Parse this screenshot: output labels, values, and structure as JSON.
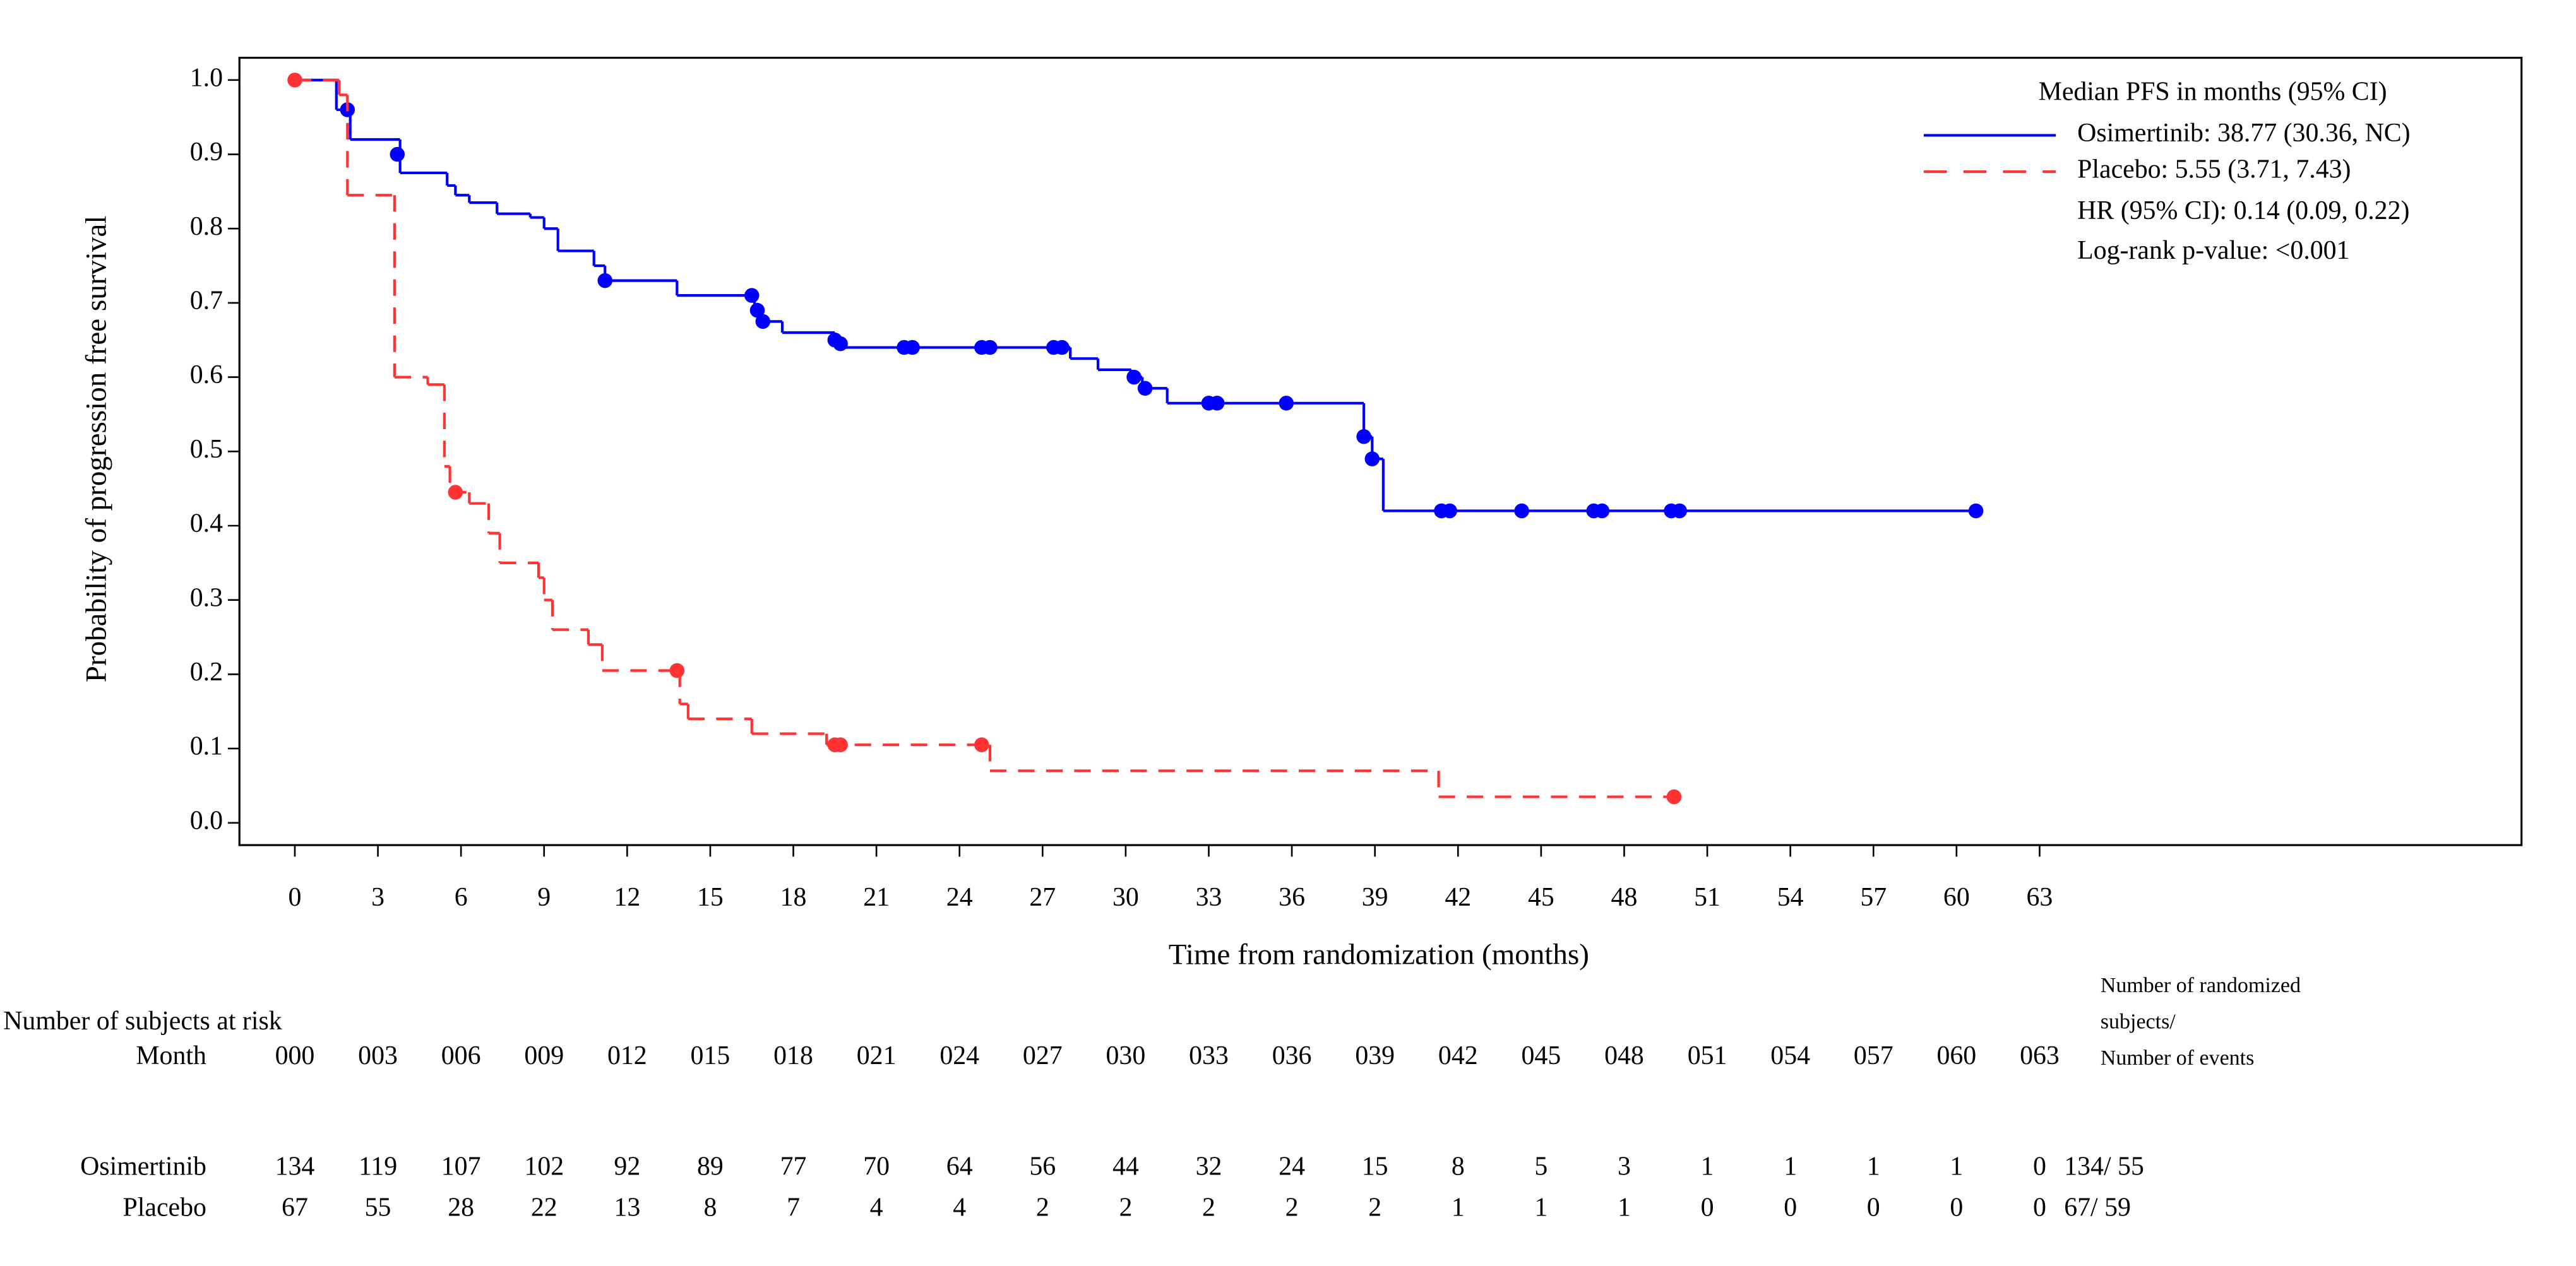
{
  "chart_data": {
    "type": "step",
    "x_label": "Time from randomization (months)",
    "y_label": "Probability of progression free survival",
    "xlim": [
      -2,
      80.4
    ],
    "ylim": [
      -0.03,
      1.03
    ],
    "xticks": [
      0,
      3,
      6,
      9,
      12,
      15,
      18,
      21,
      24,
      27,
      30,
      33,
      36,
      39,
      42,
      45,
      48,
      51,
      54,
      57,
      60,
      63
    ],
    "yticks": [
      {
        "value": 0,
        "label": "0.0"
      },
      0.1,
      0.2,
      0.3,
      0.4,
      0.5,
      0.6,
      0.7,
      0.8,
      0.9,
      {
        "value": 1,
        "label": "1.0"
      }
    ],
    "legend": {
      "title": "Median PFS in months (95% CI)",
      "entries": [
        "Osimertinib: 38.77 (30.36, NC)",
        "Placebo: 5.55 (3.71, 7.43)"
      ],
      "notes": [
        "HR (95% CI): 0.14 (0.09, 0.22)",
        "Log-rank p-value: <0.001"
      ]
    },
    "series": [
      {
        "name": "Osimertinib",
        "color": "#0000ff",
        "dashed": false,
        "x": [
          0,
          1.5,
          2.0,
          3.8,
          5.5,
          5.8,
          6.3,
          7.3,
          8.5,
          9.0,
          9.5,
          10.8,
          11.2,
          13.8,
          16.6,
          16.8,
          17.6,
          19.5,
          19.8,
          28.0,
          29.0,
          30.2,
          30.6,
          31.5,
          38.6,
          38.9,
          39.3,
          60.7
        ],
        "values": [
          1.0,
          0.96,
          0.92,
          0.875,
          0.858,
          0.845,
          0.835,
          0.82,
          0.815,
          0.8,
          0.77,
          0.75,
          0.73,
          0.71,
          0.69,
          0.675,
          0.66,
          0.65,
          0.64,
          0.625,
          0.61,
          0.6,
          0.585,
          0.565,
          0.52,
          0.49,
          0.42,
          0.42
        ],
        "censor_x": [
          1.9,
          3.7,
          11.2,
          16.5,
          16.7,
          16.9,
          19.5,
          19.7,
          22.0,
          22.3,
          24.8,
          25.1,
          27.4,
          27.7,
          30.3,
          30.7,
          33.0,
          33.3,
          35.8,
          38.6,
          38.9,
          41.4,
          41.7,
          44.3,
          46.9,
          47.2,
          49.7,
          50.0,
          60.7
        ],
        "censor_values": [
          0.96,
          0.9,
          0.73,
          0.71,
          0.69,
          0.675,
          0.65,
          0.645,
          0.64,
          0.64,
          0.64,
          0.64,
          0.64,
          0.64,
          0.6,
          0.585,
          0.565,
          0.565,
          0.565,
          0.52,
          0.49,
          0.42,
          0.42,
          0.42,
          0.42,
          0.42,
          0.42,
          0.42,
          0.42
        ]
      },
      {
        "name": "Placebo",
        "color": "#ff3333",
        "dashed": true,
        "x": [
          0,
          1.6,
          1.9,
          3.6,
          4.8,
          5.4,
          5.6,
          6.3,
          7.0,
          7.4,
          8.8,
          9.0,
          9.3,
          10.6,
          11.1,
          13.9,
          14.2,
          16.5,
          19.2,
          25.1,
          41.3,
          49.8
        ],
        "values": [
          1.0,
          0.98,
          0.845,
          0.6,
          0.59,
          0.48,
          0.445,
          0.43,
          0.39,
          0.35,
          0.33,
          0.3,
          0.26,
          0.24,
          0.205,
          0.16,
          0.14,
          0.12,
          0.105,
          0.07,
          0.035,
          0.035
        ],
        "censor_x": [
          0,
          5.8,
          13.8,
          19.5,
          19.7,
          24.8,
          49.8
        ],
        "censor_values": [
          1.0,
          0.445,
          0.205,
          0.105,
          0.105,
          0.105,
          0.035
        ]
      }
    ],
    "risk_table": {
      "title": "Number of subjects at risk",
      "month_label": "Month",
      "months": [
        "000",
        "003",
        "006",
        "009",
        "012",
        "015",
        "018",
        "021",
        "024",
        "027",
        "030",
        "033",
        "036",
        "039",
        "042",
        "045",
        "048",
        "051",
        "054",
        "057",
        "060",
        "063"
      ],
      "total_header": [
        "Number of randomized",
        "subjects/",
        "Number of events"
      ],
      "rows": [
        {
          "name": "Osimertinib",
          "values": [
            134,
            119,
            107,
            102,
            92,
            89,
            77,
            70,
            64,
            56,
            44,
            32,
            24,
            15,
            8,
            5,
            3,
            1,
            1,
            1,
            1,
            0
          ],
          "total": "134/ 55"
        },
        {
          "name": "Placebo",
          "values": [
            67,
            55,
            28,
            22,
            13,
            8,
            7,
            4,
            4,
            2,
            2,
            2,
            2,
            2,
            1,
            1,
            1,
            0,
            0,
            0,
            0,
            0
          ],
          "total": "67/ 59"
        }
      ]
    }
  }
}
